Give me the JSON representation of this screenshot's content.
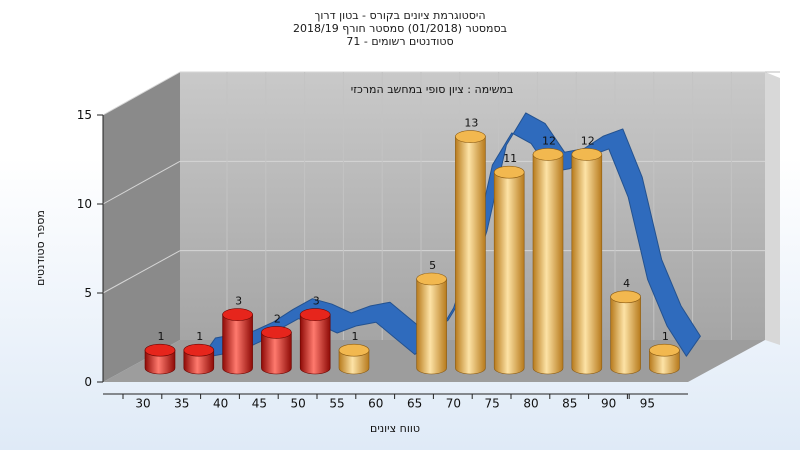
{
  "header": {
    "title_lines": [
      "היסטוגרמת ציונים בקורס - בטון דרוך",
      "בסמסטר  (01/2018)  סמסטר חורף 2018/19",
      "סטודנטים רשומים - 71"
    ]
  },
  "chart_data": {
    "type": "bar",
    "subtitle": "במשימה : ציון סופי במחשב המרכזי",
    "xlabel": "טווח ציונים",
    "ylabel": "מספר סטודנטים",
    "categories": [
      "30",
      "35",
      "40",
      "45",
      "50",
      "55",
      "60",
      "65",
      "70",
      "75",
      "80",
      "85",
      "90",
      "95"
    ],
    "ylim": [
      0,
      15
    ],
    "yticks": [
      0,
      5,
      10,
      15
    ],
    "grid": true,
    "bars": [
      {
        "x": "30",
        "value": 1,
        "color": "red"
      },
      {
        "x": "35",
        "value": 1,
        "color": "red"
      },
      {
        "x": "40",
        "value": 3,
        "color": "red"
      },
      {
        "x": "45",
        "value": 2,
        "color": "red"
      },
      {
        "x": "50",
        "value": 3,
        "color": "red"
      },
      {
        "x": "55",
        "value": 1,
        "color": "orange"
      },
      {
        "x": "65",
        "value": 5,
        "color": "orange"
      },
      {
        "x": "70",
        "value": 13,
        "color": "orange"
      },
      {
        "x": "75",
        "value": 11,
        "color": "orange"
      },
      {
        "x": "80",
        "value": 12,
        "color": "orange"
      },
      {
        "x": "85",
        "value": 12,
        "color": "orange"
      },
      {
        "x": "90",
        "value": 4,
        "color": "orange"
      },
      {
        "x": "95",
        "value": 1,
        "color": "orange"
      }
    ],
    "trend_ribbon": [
      {
        "x": 32.5,
        "y": 0.0
      },
      {
        "x": 37.5,
        "y": 0.4
      },
      {
        "x": 40.0,
        "y": 0.9
      },
      {
        "x": 42.5,
        "y": 1.6
      },
      {
        "x": 45.0,
        "y": 2.2
      },
      {
        "x": 47.5,
        "y": 1.9
      },
      {
        "x": 50.0,
        "y": 1.4
      },
      {
        "x": 52.5,
        "y": 1.8
      },
      {
        "x": 55.0,
        "y": 2.0
      },
      {
        "x": 57.5,
        "y": 1.1
      },
      {
        "x": 60.0,
        "y": 0.2
      },
      {
        "x": 62.5,
        "y": 1.0
      },
      {
        "x": 65.0,
        "y": 2.8
      },
      {
        "x": 67.5,
        "y": 6.0
      },
      {
        "x": 70.0,
        "y": 10.8
      },
      {
        "x": 72.5,
        "y": 12.6
      },
      {
        "x": 75.0,
        "y": 12.0
      },
      {
        "x": 77.5,
        "y": 10.4
      },
      {
        "x": 80.0,
        "y": 10.6
      },
      {
        "x": 82.5,
        "y": 11.3
      },
      {
        "x": 85.0,
        "y": 11.7
      },
      {
        "x": 87.5,
        "y": 9.0
      },
      {
        "x": 90.0,
        "y": 4.4
      },
      {
        "x": 92.5,
        "y": 1.8
      },
      {
        "x": 95.0,
        "y": 0.1
      }
    ],
    "colors": {
      "red_top": "#e6251c",
      "red_dark": "#8e0a06",
      "red_light": "#ff7a6e",
      "orange_top": "#f2b84f",
      "orange_dark": "#b77a1c",
      "orange_light": "#fde3a6",
      "ribbon": "#2f6bbd",
      "wall_back": "#b3b3b3",
      "wall_left": "#8a8a8a",
      "floor": "#9d9d9d"
    }
  }
}
